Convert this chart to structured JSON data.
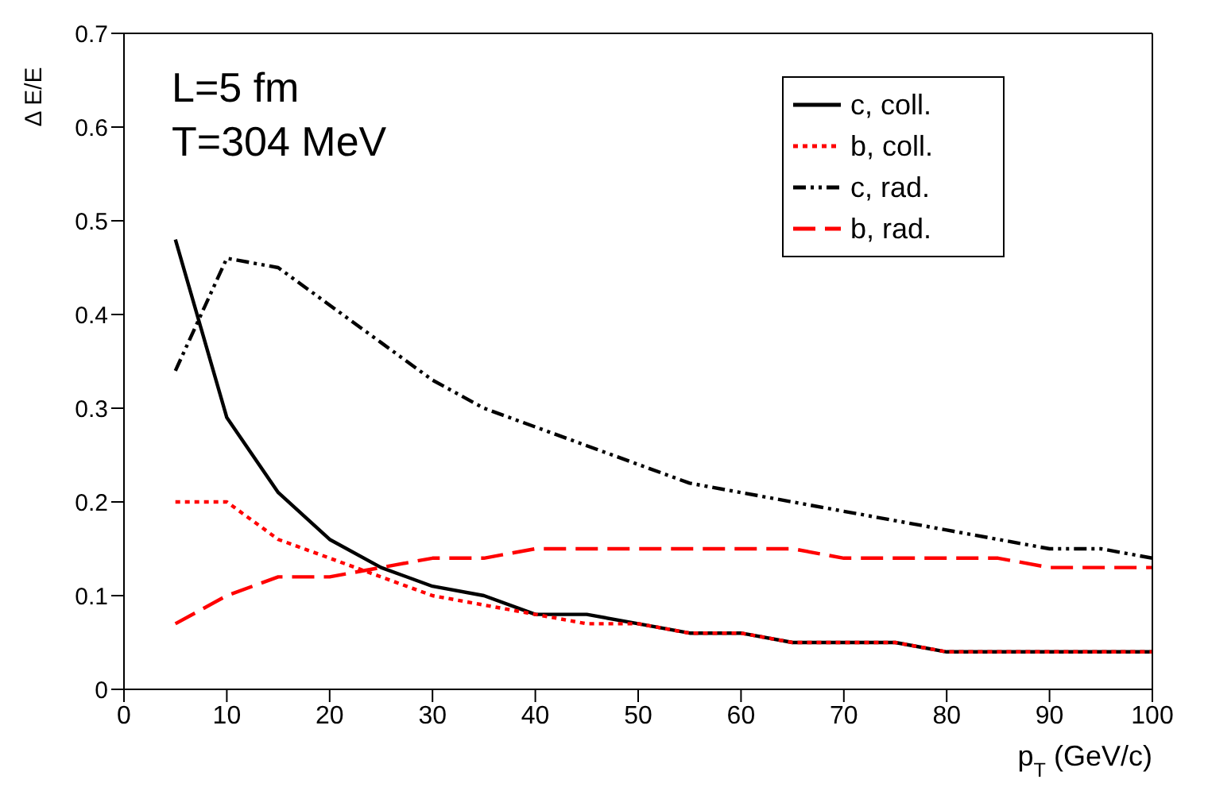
{
  "chart_data": {
    "type": "line",
    "xlabel": "p$_{T}$ (GeV/c)",
    "ylabel": "Δ E/E",
    "annotations": [
      "L=5 fm",
      "T=304 MeV"
    ],
    "x": [
      5,
      10,
      15,
      20,
      25,
      30,
      35,
      40,
      45,
      50,
      55,
      60,
      65,
      70,
      75,
      80,
      85,
      90,
      95,
      100
    ],
    "series": [
      {
        "name": "c, coll.",
        "color": "#000000",
        "line_style": "solid",
        "values": [
          0.48,
          0.29,
          0.21,
          0.16,
          0.13,
          0.11,
          0.1,
          0.08,
          0.08,
          0.07,
          0.06,
          0.06,
          0.05,
          0.05,
          0.05,
          0.04,
          0.04,
          0.04,
          0.04,
          0.04
        ]
      },
      {
        "name": "b, coll.",
        "color": "#ff0000",
        "line_style": "dotted",
        "values": [
          0.2,
          0.2,
          0.16,
          0.14,
          0.12,
          0.1,
          0.09,
          0.08,
          0.07,
          0.07,
          0.06,
          0.06,
          0.05,
          0.05,
          0.05,
          0.04,
          0.04,
          0.04,
          0.04,
          0.04
        ]
      },
      {
        "name": "c, rad.",
        "color": "#000000",
        "line_style": "dashdot",
        "values": [
          0.34,
          0.46,
          0.45,
          0.41,
          0.37,
          0.33,
          0.3,
          0.28,
          0.26,
          0.24,
          0.22,
          0.21,
          0.2,
          0.19,
          0.18,
          0.17,
          0.16,
          0.15,
          0.15,
          0.14
        ]
      },
      {
        "name": "b, rad.",
        "color": "#ff0000",
        "line_style": "dashed",
        "values": [
          0.07,
          0.1,
          0.12,
          0.12,
          0.13,
          0.14,
          0.14,
          0.15,
          0.15,
          0.15,
          0.15,
          0.15,
          0.15,
          0.14,
          0.14,
          0.14,
          0.14,
          0.13,
          0.13,
          0.13
        ]
      }
    ],
    "xlim": [
      0,
      100
    ],
    "xticks": [
      0,
      10,
      20,
      30,
      40,
      50,
      60,
      70,
      80,
      90,
      100
    ],
    "ylim": [
      0,
      0.7
    ],
    "yticks": [
      0,
      0.1,
      0.2,
      0.3,
      0.4,
      0.5,
      0.6,
      0.7
    ],
    "grid": false,
    "legend": "top right",
    "marker": "none"
  }
}
